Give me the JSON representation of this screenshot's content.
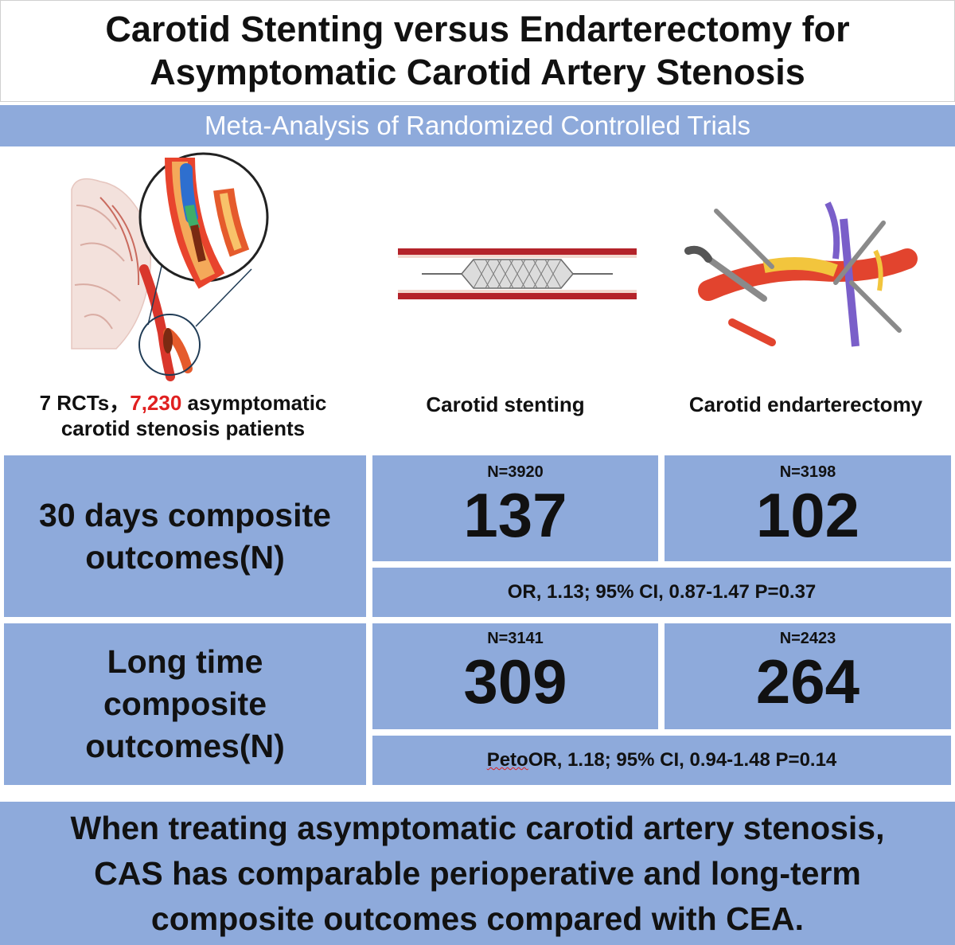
{
  "title": {
    "line1": "Carotid Stenting versus Endarterectomy for",
    "line2": "Asymptomatic Carotid Artery Stenosis"
  },
  "subtitle": "Meta-Analysis of Randomized Controlled Trials",
  "captions": {
    "patients_part1": "7 RCTs，",
    "patients_count": "7,230",
    "patients_part2": " asymptomatic",
    "patients_line2": "carotid stenosis patients",
    "stenting": "Carotid  stenting",
    "endarterectomy": "Carotid endarterectomy"
  },
  "rows": [
    {
      "label_lines": [
        "30 days composite",
        "outcomes(N)"
      ],
      "cas": {
        "n_label": "N=3920",
        "value": "137"
      },
      "cea": {
        "n_label": "N=3198",
        "value": "102"
      },
      "stat_prefix": "",
      "stat": "OR, 1.13; 95% CI, 0.87-1.47 P=0.37"
    },
    {
      "label_lines": [
        "Long time",
        "composite",
        "outcomes(N)"
      ],
      "cas": {
        "n_label": "N=3141",
        "value": "309"
      },
      "cea": {
        "n_label": "N=2423",
        "value": "264"
      },
      "stat_prefix": "Peto",
      "stat": " OR, 1.18; 95% CI, 0.94-1.48 P=0.14"
    }
  ],
  "conclusion": {
    "line1": "When treating asymptomatic carotid artery stenosis,",
    "line2": "CAS has comparable perioperative and long-term",
    "line3": "composite outcomes compared with CEA."
  },
  "colors": {
    "panel_blue": "#8eaadb",
    "accent_red": "#e02020"
  }
}
